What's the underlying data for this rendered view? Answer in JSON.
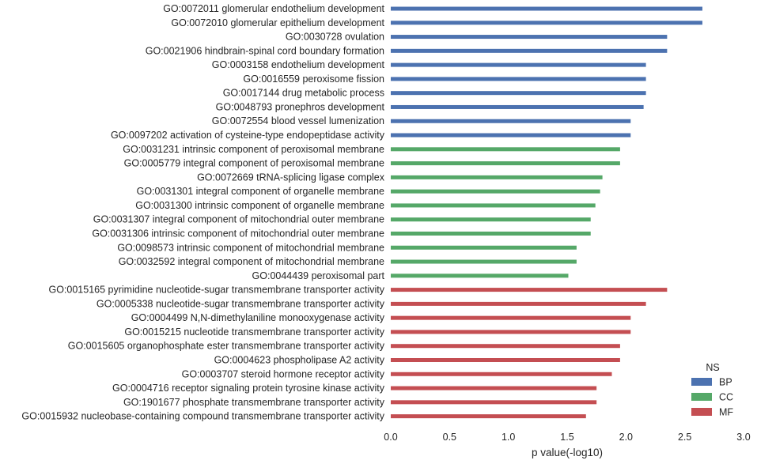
{
  "chart_data": {
    "type": "bar",
    "orientation": "horizontal",
    "xlabel": "p value(-log10)",
    "xlim": [
      0.0,
      3.0
    ],
    "xticks": [
      "0.0",
      "0.5",
      "1.0",
      "1.5",
      "2.0",
      "2.5",
      "3.0"
    ],
    "legend": {
      "title": "NS",
      "placement": "lower-right",
      "entries": [
        {
          "name": "BP",
          "color": "#4c72b0"
        },
        {
          "name": "CC",
          "color": "#55a868"
        },
        {
          "name": "MF",
          "color": "#c44e52"
        }
      ]
    },
    "bars": [
      {
        "label": "GO:0072011 glomerular endothelium development",
        "ns": "BP",
        "value": 2.65
      },
      {
        "label": "GO:0072010 glomerular epithelium development",
        "ns": "BP",
        "value": 2.65
      },
      {
        "label": "GO:0030728 ovulation",
        "ns": "BP",
        "value": 2.35
      },
      {
        "label": "GO:0021906 hindbrain-spinal cord boundary formation",
        "ns": "BP",
        "value": 2.35
      },
      {
        "label": "GO:0003158 endothelium development",
        "ns": "BP",
        "value": 2.17
      },
      {
        "label": "GO:0016559 peroxisome fission",
        "ns": "BP",
        "value": 2.17
      },
      {
        "label": "GO:0017144 drug metabolic process",
        "ns": "BP",
        "value": 2.17
      },
      {
        "label": "GO:0048793 pronephros development",
        "ns": "BP",
        "value": 2.15
      },
      {
        "label": "GO:0072554 blood vessel lumenization",
        "ns": "BP",
        "value": 2.04
      },
      {
        "label": "GO:0097202 activation of cysteine-type endopeptidase activity",
        "ns": "BP",
        "value": 2.04
      },
      {
        "label": "GO:0031231 intrinsic component of peroxisomal membrane",
        "ns": "CC",
        "value": 1.95
      },
      {
        "label": "GO:0005779 integral component of peroxisomal membrane",
        "ns": "CC",
        "value": 1.95
      },
      {
        "label": "GO:0072669 tRNA-splicing ligase complex",
        "ns": "CC",
        "value": 1.8
      },
      {
        "label": "GO:0031301 integral component of organelle membrane",
        "ns": "CC",
        "value": 1.78
      },
      {
        "label": "GO:0031300 intrinsic component of organelle membrane",
        "ns": "CC",
        "value": 1.74
      },
      {
        "label": "GO:0031307 integral component of mitochondrial outer membrane",
        "ns": "CC",
        "value": 1.7
      },
      {
        "label": "GO:0031306 intrinsic component of mitochondrial outer membrane",
        "ns": "CC",
        "value": 1.7
      },
      {
        "label": "GO:0098573 intrinsic component of mitochondrial membrane",
        "ns": "CC",
        "value": 1.58
      },
      {
        "label": "GO:0032592 integral component of mitochondrial membrane",
        "ns": "CC",
        "value": 1.58
      },
      {
        "label": "GO:0044439 peroxisomal part",
        "ns": "CC",
        "value": 1.51
      },
      {
        "label": "GO:0015165 pyrimidine nucleotide-sugar transmembrane transporter activity",
        "ns": "MF",
        "value": 2.35
      },
      {
        "label": "GO:0005338 nucleotide-sugar transmembrane transporter activity",
        "ns": "MF",
        "value": 2.17
      },
      {
        "label": "GO:0004499 N,N-dimethylaniline monooxygenase activity",
        "ns": "MF",
        "value": 2.04
      },
      {
        "label": "GO:0015215 nucleotide transmembrane transporter activity",
        "ns": "MF",
        "value": 2.04
      },
      {
        "label": "GO:0015605 organophosphate ester transmembrane transporter activity",
        "ns": "MF",
        "value": 1.95
      },
      {
        "label": "GO:0004623 phospholipase A2 activity",
        "ns": "MF",
        "value": 1.95
      },
      {
        "label": "GO:0003707 steroid hormone receptor activity",
        "ns": "MF",
        "value": 1.88
      },
      {
        "label": "GO:0004716 receptor signaling protein tyrosine kinase activity",
        "ns": "MF",
        "value": 1.75
      },
      {
        "label": "GO:1901677 phosphate transmembrane transporter activity",
        "ns": "MF",
        "value": 1.75
      },
      {
        "label": "GO:0015932 nucleobase-containing compound transmembrane transporter activity",
        "ns": "MF",
        "value": 1.66
      }
    ]
  }
}
